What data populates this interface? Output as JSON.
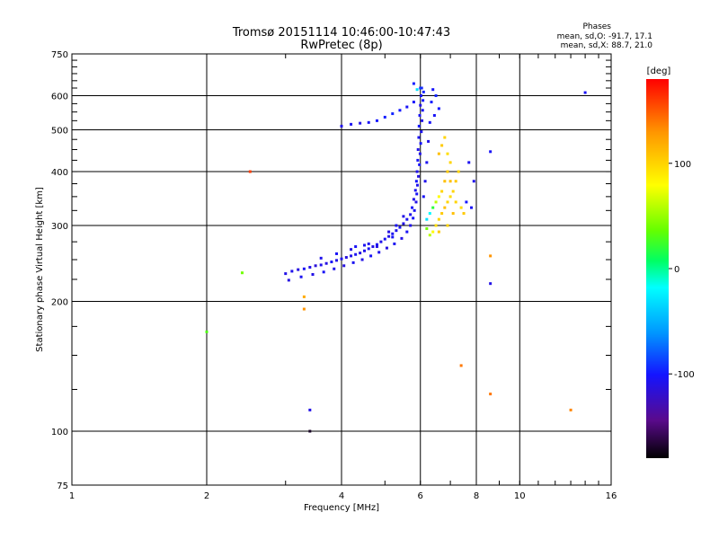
{
  "header": {
    "title_line1": "Tromsø 20151114 10:46:00-10:47:43",
    "title_line2": "RwPretec (8p)",
    "phases_title": "Phases",
    "phases_o": "mean, sd,O: -91.7, 17.1",
    "phases_x": "mean, sd,X: 88.7, 21.0"
  },
  "chart_data": {
    "type": "scatter",
    "title": "Tromsø 20151114 10:46:00-10:47:43",
    "subtitle": "RwPretec (8p)",
    "xlabel": "Frequency [MHz]",
    "ylabel": "Stationary phase Virtual Height [km]",
    "x_scale": "log2",
    "y_scale": "log",
    "xlim": [
      1,
      16
    ],
    "ylim": [
      75,
      750
    ],
    "x_ticks": [
      "1",
      "2",
      "4",
      "6",
      "8",
      "10",
      "16"
    ],
    "y_ticks": [
      "75",
      "100",
      "200",
      "300",
      "400",
      "500",
      "600",
      "750"
    ],
    "grid": true,
    "colorbar": {
      "label": "[deg]",
      "range": [
        -180,
        180
      ],
      "ticks": [
        "100",
        "0",
        "-100"
      ],
      "colors": [
        "#000000",
        "#5a0a8c",
        "#1414ff",
        "#0096ff",
        "#00ffff",
        "#00ff64",
        "#64ff00",
        "#ffff00",
        "#ff9600",
        "#ff0000"
      ]
    },
    "series": [
      {
        "values": [
          [
            3.0,
            232,
            -110
          ],
          [
            3.1,
            235,
            -108
          ],
          [
            3.2,
            237,
            -112
          ],
          [
            3.3,
            238,
            -105
          ],
          [
            3.4,
            240,
            -110
          ],
          [
            3.5,
            242,
            -115
          ],
          [
            3.6,
            243,
            -108
          ],
          [
            3.7,
            245,
            -112
          ],
          [
            3.8,
            247,
            -104
          ],
          [
            3.9,
            249,
            -110
          ],
          [
            4.0,
            251,
            -107
          ],
          [
            4.1,
            253,
            -113
          ],
          [
            4.2,
            255,
            -109
          ],
          [
            4.3,
            257,
            -106
          ],
          [
            4.4,
            259,
            -111
          ],
          [
            4.5,
            262,
            -108
          ],
          [
            4.6,
            265,
            -104
          ],
          [
            4.7,
            268,
            -110
          ],
          [
            4.8,
            271,
            -106
          ],
          [
            4.9,
            275,
            -109
          ],
          [
            5.0,
            279,
            -105
          ],
          [
            5.1,
            283,
            -110
          ],
          [
            5.2,
            287,
            -106
          ],
          [
            5.3,
            292,
            -108
          ],
          [
            5.4,
            297,
            -104
          ],
          [
            5.5,
            303,
            -110
          ],
          [
            5.6,
            310,
            -106
          ],
          [
            5.7,
            318,
            -108
          ],
          [
            5.75,
            330,
            -104
          ],
          [
            5.8,
            345,
            -110
          ],
          [
            5.85,
            362,
            -106
          ],
          [
            5.88,
            380,
            -102
          ],
          [
            5.9,
            400,
            -108
          ],
          [
            5.92,
            425,
            -104
          ],
          [
            5.93,
            450,
            -110
          ],
          [
            5.95,
            480,
            -106
          ],
          [
            5.96,
            510,
            -100
          ],
          [
            5.98,
            540,
            -104
          ],
          [
            6.0,
            570,
            -108
          ],
          [
            6.02,
            600,
            -102
          ],
          [
            6.04,
            625,
            -98
          ],
          [
            3.05,
            224,
            -112
          ],
          [
            3.25,
            228,
            -106
          ],
          [
            3.45,
            231,
            -110
          ],
          [
            3.65,
            234,
            -104
          ],
          [
            3.85,
            238,
            -108
          ],
          [
            4.05,
            242,
            -112
          ],
          [
            4.25,
            246,
            -106
          ],
          [
            4.45,
            250,
            -110
          ],
          [
            4.65,
            255,
            -104
          ],
          [
            4.85,
            260,
            -108
          ],
          [
            5.05,
            266,
            -112
          ],
          [
            5.25,
            272,
            -106
          ],
          [
            5.45,
            280,
            -110
          ],
          [
            5.6,
            290,
            -104
          ],
          [
            5.7,
            300,
            -108
          ],
          [
            5.78,
            312,
            -102
          ],
          [
            5.82,
            325,
            -106
          ],
          [
            5.87,
            340,
            -110
          ],
          [
            5.89,
            355,
            -104
          ],
          [
            5.91,
            372,
            -108
          ],
          [
            5.94,
            390,
            -112
          ],
          [
            5.97,
            415,
            -104
          ],
          [
            5.99,
            440,
            -108
          ],
          [
            6.01,
            465,
            -102
          ],
          [
            6.03,
            495,
            -106
          ],
          [
            6.05,
            525,
            -110
          ],
          [
            6.07,
            555,
            -104
          ],
          [
            6.08,
            585,
            -100
          ],
          [
            6.1,
            612,
            -96
          ],
          [
            3.6,
            252,
            -108
          ],
          [
            3.9,
            258,
            -104
          ],
          [
            4.2,
            264,
            -112
          ],
          [
            4.5,
            270,
            -106
          ],
          [
            4.8,
            268,
            -110
          ],
          [
            4.3,
            268,
            -104
          ],
          [
            4.6,
            272,
            -108
          ],
          [
            5.1,
            290,
            -112
          ],
          [
            5.3,
            300,
            -106
          ],
          [
            5.5,
            315,
            -110
          ],
          [
            6.1,
            350,
            -104
          ],
          [
            6.15,
            380,
            -108
          ],
          [
            6.2,
            420,
            -106
          ],
          [
            6.25,
            470,
            -110
          ],
          [
            6.3,
            520,
            -104
          ],
          [
            6.35,
            580,
            -98
          ],
          [
            6.4,
            620,
            -102
          ],
          [
            6.5,
            600,
            -96
          ],
          [
            6.6,
            560,
            -100
          ],
          [
            6.45,
            540,
            -104
          ],
          [
            4.0,
            510,
            -108
          ],
          [
            4.2,
            515,
            -106
          ],
          [
            4.4,
            518,
            -110
          ],
          [
            4.6,
            520,
            -104
          ],
          [
            4.8,
            525,
            -100
          ],
          [
            5.0,
            535,
            -98
          ],
          [
            5.2,
            545,
            -96
          ],
          [
            5.4,
            555,
            -100
          ],
          [
            5.6,
            565,
            -104
          ],
          [
            5.8,
            580,
            -102
          ],
          [
            6.2,
            310,
            -30
          ],
          [
            6.3,
            320,
            -20
          ],
          [
            6.4,
            330,
            20
          ],
          [
            6.5,
            340,
            60
          ],
          [
            6.6,
            350,
            80
          ],
          [
            6.7,
            360,
            100
          ],
          [
            6.8,
            380,
            110
          ],
          [
            6.9,
            400,
            105
          ],
          [
            7.0,
            420,
            100
          ],
          [
            6.5,
            300,
            95
          ],
          [
            6.6,
            310,
            100
          ],
          [
            6.7,
            320,
            105
          ],
          [
            6.8,
            330,
            110
          ],
          [
            6.9,
            340,
            100
          ],
          [
            7.0,
            350,
            95
          ],
          [
            7.1,
            360,
            100
          ],
          [
            7.2,
            380,
            105
          ],
          [
            7.3,
            400,
            100
          ],
          [
            6.6,
            440,
            110
          ],
          [
            6.7,
            460,
            105
          ],
          [
            6.8,
            480,
            100
          ],
          [
            6.9,
            440,
            95
          ],
          [
            7.0,
            380,
            110
          ],
          [
            6.9,
            300,
            100
          ],
          [
            6.6,
            290,
            105
          ],
          [
            6.4,
            290,
            80
          ],
          [
            6.3,
            285,
            60
          ],
          [
            6.2,
            295,
            40
          ],
          [
            7.1,
            320,
            110
          ],
          [
            7.2,
            340,
            100
          ],
          [
            7.4,
            330,
            95
          ],
          [
            7.5,
            320,
            105
          ],
          [
            7.6,
            340,
            -100
          ],
          [
            7.8,
            330,
            -104
          ],
          [
            7.9,
            380,
            -108
          ],
          [
            7.7,
            420,
            -106
          ],
          [
            8.6,
            445,
            -104
          ],
          [
            8.6,
            220,
            -110
          ],
          [
            8.6,
            255,
            130
          ],
          [
            8.6,
            122,
            140
          ],
          [
            7.4,
            142,
            140
          ],
          [
            14.0,
            610,
            -104
          ],
          [
            13.0,
            112,
            135
          ],
          [
            3.4,
            112,
            -110
          ],
          [
            3.4,
            100,
            -170
          ],
          [
            3.3,
            192,
            130
          ],
          [
            3.3,
            205,
            120
          ],
          [
            2.5,
            400,
            160
          ],
          [
            2.4,
            233,
            40
          ],
          [
            2.0,
            170,
            30
          ],
          [
            6.0,
            625,
            -90
          ],
          [
            5.9,
            620,
            -30
          ],
          [
            5.2,
            282,
            -104
          ],
          [
            5.8,
            640,
            -98
          ]
        ]
      }
    ]
  },
  "x_tick_labels": [
    "1",
    "2",
    "4",
    "6",
    "8",
    "10",
    "16"
  ],
  "y_tick_labels": [
    "75",
    "100",
    "200",
    "300",
    "400",
    "500",
    "600",
    "750"
  ],
  "colorbar_tick_labels": [
    "100",
    "0",
    "-100"
  ]
}
